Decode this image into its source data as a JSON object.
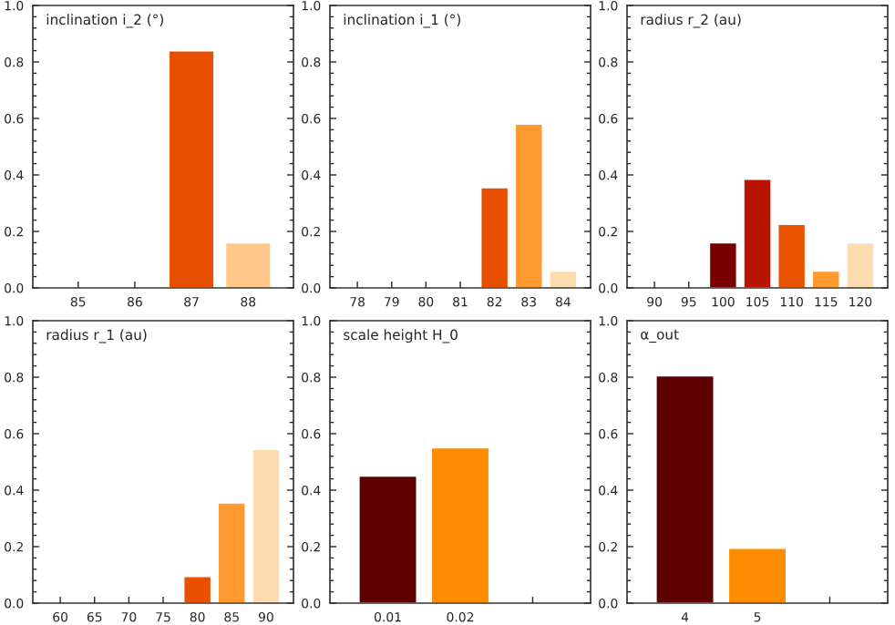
{
  "chart_data": [
    {
      "type": "bar",
      "title": "inclination i_2 (°)",
      "categories": [
        "85",
        "86",
        "87",
        "88"
      ],
      "values": [
        null,
        null,
        0.84,
        0.16
      ],
      "colors": [
        "#e84e00",
        "#e84e00",
        "#e84e00",
        "#ffc78a"
      ],
      "ylim": [
        0,
        1
      ],
      "yticks": [
        {
          "value": 0,
          "label": "0.0"
        },
        {
          "value": 0.2,
          "label": "0.2"
        },
        {
          "value": 0.4,
          "label": "0.4"
        },
        {
          "value": 0.6,
          "label": "0.6"
        },
        {
          "value": 0.8,
          "label": "0.8"
        },
        {
          "value": 1,
          "label": "1.0"
        }
      ],
      "grid": false,
      "legend": false
    },
    {
      "type": "bar",
      "title": "inclination i_1 (°)",
      "categories": [
        "78",
        "79",
        "80",
        "81",
        "82",
        "83",
        "84"
      ],
      "values": [
        null,
        null,
        null,
        null,
        0.355,
        0.58,
        0.06
      ],
      "colors": [
        "#e85000",
        "#e85000",
        "#e85000",
        "#e85000",
        "#e85000",
        "#ff9a30",
        "#ffdcb0"
      ],
      "ylim": [
        0,
        1
      ],
      "yticks": [
        {
          "value": 0,
          "label": "0.0"
        },
        {
          "value": 0.2,
          "label": "0.2"
        },
        {
          "value": 0.4,
          "label": "0.4"
        },
        {
          "value": 0.6,
          "label": "0.6"
        },
        {
          "value": 0.8,
          "label": "0.8"
        },
        {
          "value": 1,
          "label": "1.0"
        }
      ],
      "grid": false,
      "legend": false
    },
    {
      "type": "bar",
      "title": "radius r_2 (au)",
      "categories": [
        "90",
        "95",
        "100",
        "105",
        "110",
        "115",
        "120"
      ],
      "values": [
        null,
        null,
        0.16,
        0.385,
        0.225,
        0.06,
        0.16
      ],
      "colors": [
        "#7a0000",
        "#7a0000",
        "#7a0000",
        "#b81400",
        "#ea5400",
        "#ff9a30",
        "#ffdcb0"
      ],
      "ylim": [
        0,
        1
      ],
      "yticks": [
        {
          "value": 0,
          "label": "0.0"
        },
        {
          "value": 0.2,
          "label": "0.2"
        },
        {
          "value": 0.4,
          "label": "0.4"
        },
        {
          "value": 0.6,
          "label": "0.6"
        },
        {
          "value": 0.8,
          "label": "0.8"
        },
        {
          "value": 1,
          "label": "1.0"
        }
      ],
      "grid": false,
      "legend": false
    },
    {
      "type": "bar",
      "title": "radius r_1 (au)",
      "categories": [
        "60",
        "65",
        "70",
        "75",
        "80",
        "85",
        "90"
      ],
      "values": [
        null,
        null,
        null,
        null,
        0.095,
        0.355,
        0.545
      ],
      "colors": [
        "#e85000",
        "#e85000",
        "#e85000",
        "#e85000",
        "#e85000",
        "#ff9a30",
        "#ffdcb0"
      ],
      "ylim": [
        0,
        1
      ],
      "yticks": [
        {
          "value": 0,
          "label": "0.0"
        },
        {
          "value": 0.2,
          "label": "0.2"
        },
        {
          "value": 0.4,
          "label": "0.4"
        },
        {
          "value": 0.6,
          "label": "0.6"
        },
        {
          "value": 0.8,
          "label": "0.8"
        },
        {
          "value": 1,
          "label": "1.0"
        }
      ],
      "grid": false,
      "legend": false
    },
    {
      "type": "bar",
      "title": "scale height H_0",
      "categories": [
        "0.01",
        "0.02",
        null
      ],
      "values": [
        0.45,
        0.55,
        null
      ],
      "colors": [
        "#5c0000",
        "#ff8c00",
        "#ff8c00"
      ],
      "ylim": [
        0,
        1
      ],
      "yticks": [
        {
          "value": 0,
          "label": "0.0"
        },
        {
          "value": 0.2,
          "label": "0.2"
        },
        {
          "value": 0.4,
          "label": "0.4"
        },
        {
          "value": 0.6,
          "label": "0.6"
        },
        {
          "value": 0.8,
          "label": "0.8"
        },
        {
          "value": 1,
          "label": "1.0"
        }
      ],
      "grid": false,
      "legend": false
    },
    {
      "type": "bar",
      "title": "α_out",
      "categories": [
        "4",
        "5",
        null
      ],
      "values": [
        0.805,
        0.195,
        null
      ],
      "colors": [
        "#5c0000",
        "#ff8c00",
        "#ff8c00"
      ],
      "ylim": [
        0,
        1
      ],
      "yticks": [
        {
          "value": 0,
          "label": "0.0"
        },
        {
          "value": 0.2,
          "label": "0.2"
        },
        {
          "value": 0.4,
          "label": "0.4"
        },
        {
          "value": 0.6,
          "label": "0.6"
        },
        {
          "value": 0.8,
          "label": "0.8"
        },
        {
          "value": 1,
          "label": "1.0"
        }
      ],
      "grid": false,
      "legend": false
    }
  ]
}
